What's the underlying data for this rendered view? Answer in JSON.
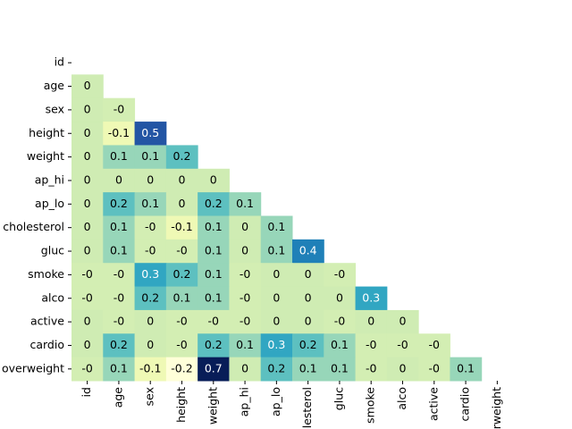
{
  "chart_data": {
    "type": "heatmap",
    "colormap": "YlGnBu",
    "rows": [
      "id",
      "age",
      "sex",
      "height",
      "weight",
      "ap_hi",
      "ap_lo",
      "cholesterol",
      "gluc",
      "smoke",
      "alco",
      "active",
      "cardio",
      "overweight"
    ],
    "columns": [
      "id",
      "age",
      "sex",
      "height",
      "weight",
      "ap_hi",
      "ap_lo",
      "cholesterol",
      "gluc",
      "smoke",
      "alco",
      "active",
      "cardio",
      "overweight"
    ],
    "values": [
      [],
      [
        0
      ],
      [
        0,
        -0.01
      ],
      [
        0,
        -0.1,
        0.5
      ],
      [
        0,
        0.1,
        0.1,
        0.2
      ],
      [
        0,
        0,
        0,
        0,
        0
      ],
      [
        0,
        0.2,
        0.1,
        0,
        0.2,
        0.1
      ],
      [
        0,
        0.1,
        -0.01,
        -0.1,
        0.1,
        0,
        0.1
      ],
      [
        0,
        0.1,
        -0.01,
        -0.01,
        0.1,
        0,
        0.1,
        0.4
      ],
      [
        -0.01,
        -0.01,
        0.3,
        0.2,
        0.1,
        -0.01,
        0,
        0,
        -0.01
      ],
      [
        -0.01,
        -0.01,
        0.2,
        0.1,
        0.1,
        -0.01,
        0,
        0,
        0,
        0.3
      ],
      [
        0,
        -0.01,
        0,
        -0.01,
        -0.01,
        -0.01,
        0,
        0,
        -0.01,
        0,
        0
      ],
      [
        0,
        0.2,
        0,
        -0.01,
        0.2,
        0.1,
        0.3,
        0.2,
        0.1,
        -0.01,
        -0.01,
        -0.01
      ],
      [
        -0.01,
        0.1,
        -0.1,
        -0.2,
        0.7,
        0,
        0.2,
        0.1,
        0.1,
        -0.01,
        0,
        -0.01,
        0.1
      ]
    ],
    "value_labels": [
      [],
      [
        "0"
      ],
      [
        "0",
        "-0"
      ],
      [
        "0",
        "-0.1",
        "0.5"
      ],
      [
        "0",
        "0.1",
        "0.1",
        "0.2"
      ],
      [
        "0",
        "0",
        "0",
        "0",
        "0"
      ],
      [
        "0",
        "0.2",
        "0.1",
        "0",
        "0.2",
        "0.1"
      ],
      [
        "0",
        "0.1",
        "-0",
        "-0.1",
        "0.1",
        "0",
        "0.1"
      ],
      [
        "0",
        "0.1",
        "-0",
        "-0",
        "0.1",
        "0",
        "0.1",
        "0.4"
      ],
      [
        "-0",
        "-0",
        "0.3",
        "0.2",
        "0.1",
        "-0",
        "0",
        "0",
        "-0"
      ],
      [
        "-0",
        "-0",
        "0.2",
        "0.1",
        "0.1",
        "-0",
        "0",
        "0",
        "0",
        "0.3"
      ],
      [
        "0",
        "-0",
        "0",
        "-0",
        "-0",
        "-0",
        "0",
        "0",
        "-0",
        "0",
        "0"
      ],
      [
        "0",
        "0.2",
        "0",
        "-0",
        "0.2",
        "0.1",
        "0.3",
        "0.2",
        "0.1",
        "-0",
        "-0",
        "-0"
      ],
      [
        "-0",
        "0.1",
        "-0.1",
        "-0.2",
        "0.7",
        "0",
        "0.2",
        "0.1",
        "0.1",
        "-0",
        "0",
        "-0",
        "0.1"
      ]
    ]
  }
}
